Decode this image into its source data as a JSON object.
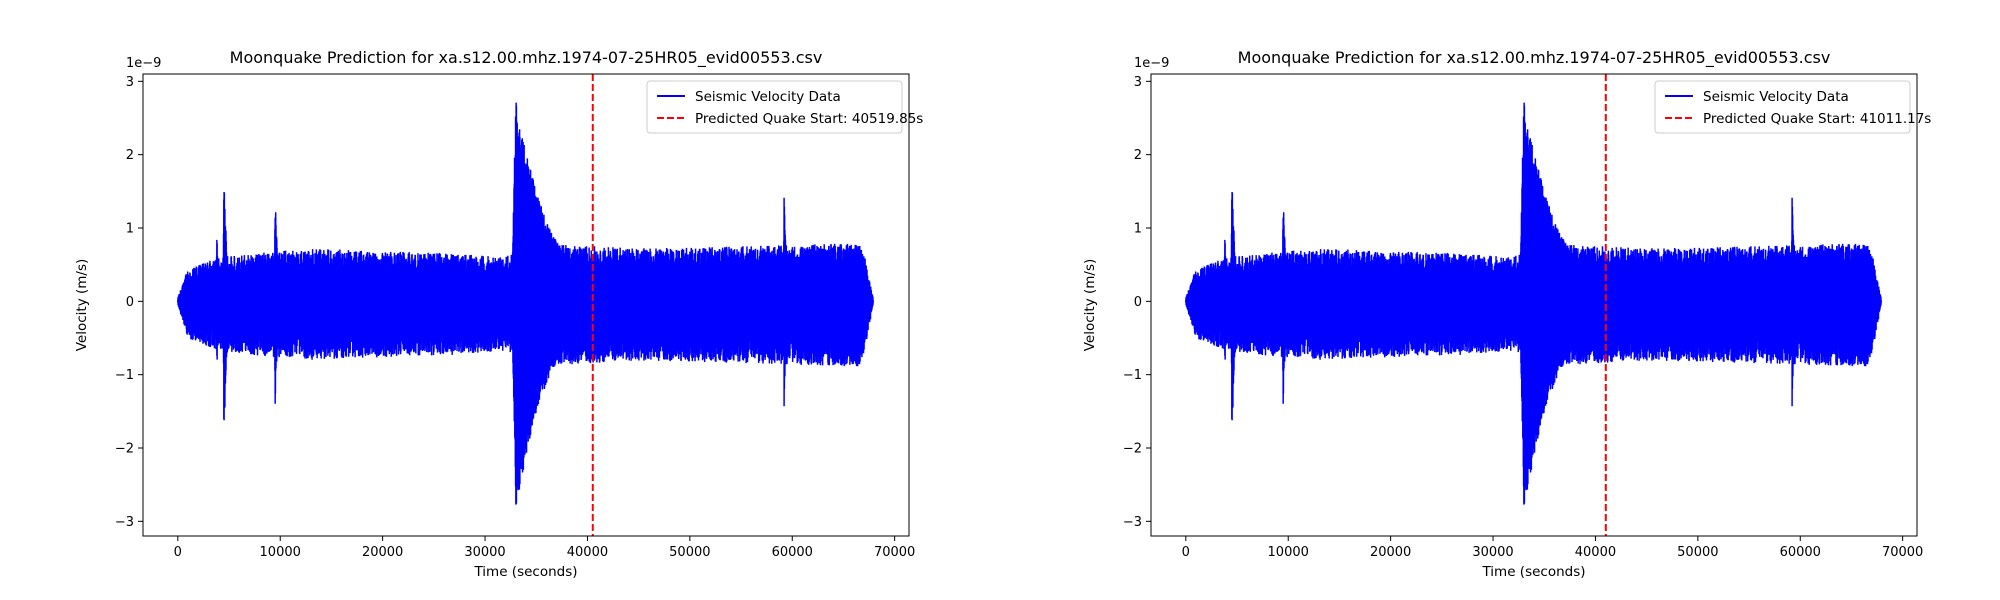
{
  "chart_data": [
    {
      "type": "line",
      "title": "Moonquake Prediction for xa.s12.00.mhz.1974-07-25HR05_evid00553.csv",
      "xlabel": "Time (seconds)",
      "ylabel": "Velocity (m/s)",
      "y_offset_label": "1e−9",
      "xlim": [
        -3400,
        71400
      ],
      "ylim": [
        -3.2,
        3.1
      ],
      "x_ticks": [
        0,
        10000,
        20000,
        30000,
        40000,
        50000,
        60000,
        70000
      ],
      "x_tick_labels": [
        "0",
        "10000",
        "20000",
        "30000",
        "40000",
        "50000",
        "60000",
        "70000"
      ],
      "y_ticks": [
        -3,
        -2,
        -1,
        0,
        1,
        2,
        3
      ],
      "y_tick_labels": [
        "−3",
        "−2",
        "−1",
        "0",
        "1",
        "2",
        "3"
      ],
      "grid": false,
      "legend_position": "top-right",
      "series": [
        {
          "name": "Seismic Velocity Data",
          "color": "#0000ff",
          "style": "solid",
          "duration": 67900,
          "background_envelope": [
            [
              0,
              0.05
            ],
            [
              1000,
              0.45
            ],
            [
              4000,
              0.6
            ],
            [
              9000,
              0.68
            ],
            [
              14000,
              0.72
            ],
            [
              20000,
              0.68
            ],
            [
              26000,
              0.66
            ],
            [
              32000,
              0.6
            ],
            [
              33000,
              0.7
            ],
            [
              37000,
              0.78
            ],
            [
              45000,
              0.72
            ],
            [
              55000,
              0.75
            ],
            [
              62000,
              0.78
            ],
            [
              66800,
              0.8
            ],
            [
              67900,
              0.05
            ]
          ],
          "negative_envelope_scale": 1.12,
          "bursts": [
            {
              "t": 33000,
              "peak_pos": 2.85,
              "peak_neg": -2.9,
              "rise": 400,
              "decay": 3200
            },
            {
              "t": 4500,
              "peak_pos": 1.72,
              "peak_neg": -1.9,
              "rise": 80,
              "decay": 350
            },
            {
              "t": 9500,
              "peak_pos": 1.48,
              "peak_neg": -1.45,
              "rise": 80,
              "decay": 300
            },
            {
              "t": 59200,
              "peak_pos": 1.6,
              "peak_neg": -1.58,
              "rise": 60,
              "decay": 250
            },
            {
              "t": 45500,
              "peak_pos": 0.95,
              "peak_neg": -0.95,
              "rise": 40,
              "decay": 200
            },
            {
              "t": 3800,
              "peak_pos": 1.0,
              "peak_neg": -1.0,
              "rise": 40,
              "decay": 200
            }
          ]
        },
        {
          "name": "Predicted Quake Start: 40519.85s",
          "color": "#ff0000",
          "style": "dashed",
          "x": 40519.85
        }
      ]
    },
    {
      "type": "line",
      "title": "Moonquake Prediction for xa.s12.00.mhz.1974-07-25HR05_evid00553.csv",
      "xlabel": "Time (seconds)",
      "ylabel": "Velocity (m/s)",
      "y_offset_label": "1e−9",
      "xlim": [
        -3400,
        71400
      ],
      "ylim": [
        -3.2,
        3.1
      ],
      "x_ticks": [
        0,
        10000,
        20000,
        30000,
        40000,
        50000,
        60000,
        70000
      ],
      "x_tick_labels": [
        "0",
        "10000",
        "20000",
        "30000",
        "40000",
        "50000",
        "60000",
        "70000"
      ],
      "y_ticks": [
        -3,
        -2,
        -1,
        0,
        1,
        2,
        3
      ],
      "y_tick_labels": [
        "−3",
        "−2",
        "−1",
        "0",
        "1",
        "2",
        "3"
      ],
      "grid": false,
      "legend_position": "top-right",
      "series": [
        {
          "name": "Seismic Velocity Data",
          "color": "#0000ff",
          "style": "solid",
          "duration": 67900,
          "background_envelope": [
            [
              0,
              0.05
            ],
            [
              1000,
              0.45
            ],
            [
              4000,
              0.6
            ],
            [
              9000,
              0.68
            ],
            [
              14000,
              0.72
            ],
            [
              20000,
              0.68
            ],
            [
              26000,
              0.66
            ],
            [
              32000,
              0.6
            ],
            [
              33000,
              0.7
            ],
            [
              37000,
              0.78
            ],
            [
              45000,
              0.72
            ],
            [
              55000,
              0.75
            ],
            [
              62000,
              0.78
            ],
            [
              66800,
              0.8
            ],
            [
              67900,
              0.05
            ]
          ],
          "negative_envelope_scale": 1.12,
          "bursts": [
            {
              "t": 33000,
              "peak_pos": 2.85,
              "peak_neg": -2.9,
              "rise": 400,
              "decay": 3200
            },
            {
              "t": 4500,
              "peak_pos": 1.72,
              "peak_neg": -1.9,
              "rise": 80,
              "decay": 350
            },
            {
              "t": 9500,
              "peak_pos": 1.48,
              "peak_neg": -1.45,
              "rise": 80,
              "decay": 300
            },
            {
              "t": 59200,
              "peak_pos": 1.6,
              "peak_neg": -1.58,
              "rise": 60,
              "decay": 250
            },
            {
              "t": 45500,
              "peak_pos": 0.95,
              "peak_neg": -0.95,
              "rise": 40,
              "decay": 200
            },
            {
              "t": 3800,
              "peak_pos": 1.0,
              "peak_neg": -1.0,
              "rise": 40,
              "decay": 200
            }
          ]
        },
        {
          "name": "Predicted Quake Start: 41011.17s",
          "color": "#ff0000",
          "style": "dashed",
          "x": 41011.17
        }
      ]
    }
  ]
}
